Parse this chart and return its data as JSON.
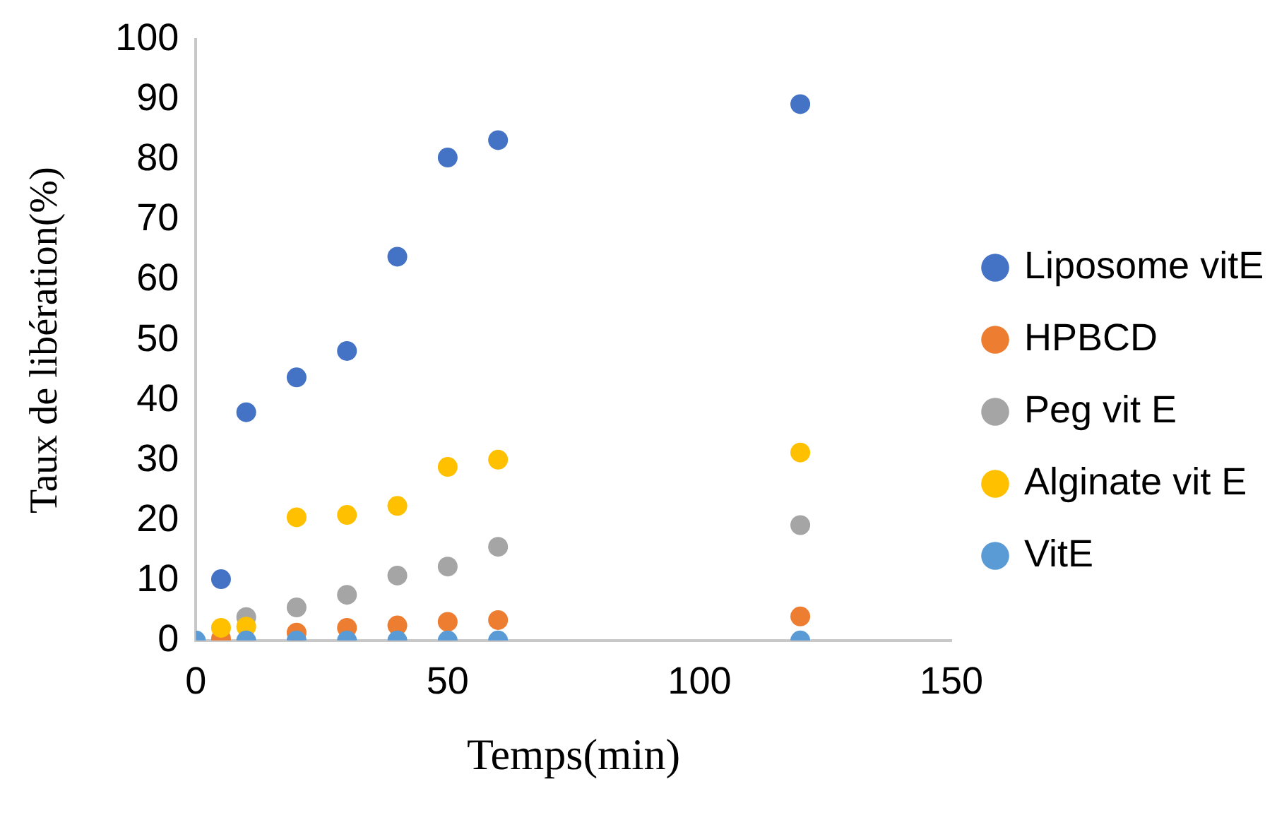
{
  "chart_data": {
    "type": "scatter",
    "xlabel": "Temps(min)",
    "ylabel": "Taux de libération(%)",
    "x": [
      0,
      5,
      10,
      20,
      30,
      40,
      50,
      60,
      120
    ],
    "series": [
      {
        "name": "Liposome vitE",
        "color": "#4472c4",
        "values": [
          null,
          10.2,
          38,
          43.8,
          48.2,
          63.9,
          80.4,
          83.3,
          89.3
        ]
      },
      {
        "name": "HPBCD",
        "color": "#ed7d31",
        "values": [
          null,
          0.3,
          null,
          1.3,
          2.1,
          2.5,
          3.1,
          3.4,
          4.0
        ]
      },
      {
        "name": "Peg vit E",
        "color": "#a5a5a5",
        "values": [
          null,
          null,
          3.9,
          5.5,
          7.6,
          10.8,
          12.3,
          15.6,
          19.2
        ]
      },
      {
        "name": "Alginate vit E",
        "color": "#ffc000",
        "values": [
          null,
          2.1,
          2.3,
          20.5,
          20.9,
          22.4,
          28.9,
          30.1,
          31.3
        ]
      },
      {
        "name": "VitE",
        "color": "#5b9bd5",
        "values": [
          0,
          null,
          0,
          0,
          0,
          0,
          0,
          0,
          0
        ]
      }
    ],
    "xlim": [
      0,
      150
    ],
    "xticks": [
      0,
      50,
      100,
      150
    ],
    "ylim": [
      0,
      100
    ],
    "yticks": [
      0,
      10,
      20,
      30,
      40,
      50,
      60,
      70,
      80,
      90,
      100
    ],
    "grid": false,
    "legend": "right",
    "marker": "circle"
  }
}
